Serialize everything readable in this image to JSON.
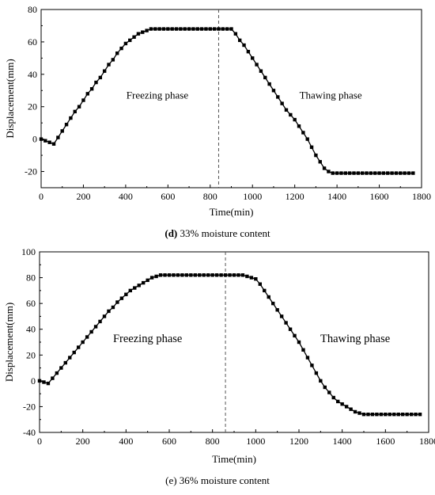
{
  "chart_data": [
    {
      "type": "line",
      "xlabel": "Time(min)",
      "ylabel": "Displacement(mm)",
      "xlim": [
        0,
        1800
      ],
      "ylim": [
        -30,
        80
      ],
      "xticks": [
        0,
        200,
        400,
        600,
        800,
        1000,
        1200,
        1400,
        1600,
        1800
      ],
      "yticks": [
        -20,
        0,
        20,
        40,
        60,
        80
      ],
      "divider_x": 840,
      "annotations": [
        {
          "text": "Freezing phase",
          "x": 550,
          "y": 25
        },
        {
          "text": "Thawing phase",
          "x": 1370,
          "y": 25
        }
      ],
      "caption": {
        "tag": "(d)",
        "text": "33% moisture content"
      },
      "series": [
        {
          "x": [
            0,
            20,
            40,
            60,
            80,
            100,
            120,
            140,
            160,
            180,
            200,
            220,
            240,
            260,
            280,
            300,
            320,
            340,
            360,
            380,
            400,
            420,
            440,
            460,
            480,
            500,
            520,
            540,
            560,
            580,
            600,
            620,
            640,
            660,
            680,
            700,
            720,
            740,
            760,
            780,
            800,
            820,
            840,
            860,
            880,
            900,
            920,
            940,
            960,
            980,
            1000,
            1020,
            1040,
            1060,
            1080,
            1100,
            1120,
            1140,
            1160,
            1180,
            1200,
            1220,
            1240,
            1260,
            1280,
            1300,
            1320,
            1340,
            1360,
            1380,
            1400,
            1420,
            1440,
            1460,
            1480,
            1500,
            1520,
            1540,
            1560,
            1580,
            1600,
            1620,
            1640,
            1660,
            1680,
            1700,
            1720,
            1740,
            1760
          ],
          "y": [
            0,
            -1,
            -2,
            -3,
            1,
            5,
            9,
            13,
            17,
            20,
            24,
            28,
            31,
            35,
            38,
            42,
            46,
            49,
            53,
            56,
            59,
            61,
            63,
            65,
            66,
            67,
            68,
            68,
            68,
            68,
            68,
            68,
            68,
            68,
            68,
            68,
            68,
            68,
            68,
            68,
            68,
            68,
            68,
            68,
            68,
            68,
            65,
            61,
            58,
            54,
            50,
            46,
            42,
            38,
            34,
            30,
            26,
            22,
            18,
            15,
            12,
            8,
            4,
            0,
            -5,
            -10,
            -14,
            -18,
            -20,
            -21,
            -21,
            -21,
            -21,
            -21,
            -21,
            -21,
            -21,
            -21,
            -21,
            -21,
            -21,
            -21,
            -21,
            -21,
            -21,
            -21,
            -21,
            -21,
            -21
          ]
        }
      ]
    },
    {
      "type": "line",
      "xlabel": "Time(min)",
      "ylabel": "Displacement(mm)",
      "xlim": [
        0,
        1800
      ],
      "ylim": [
        -40,
        100
      ],
      "xticks": [
        0,
        200,
        400,
        600,
        800,
        1000,
        1200,
        1400,
        1600,
        1800
      ],
      "yticks": [
        -40,
        -20,
        0,
        20,
        40,
        60,
        80,
        100
      ],
      "divider_x": 860,
      "annotations": [
        {
          "text": "Freezing phase",
          "x": 500,
          "y": 30
        },
        {
          "text": "Thawing phase",
          "x": 1460,
          "y": 30
        }
      ],
      "caption": {
        "tag": "(e)",
        "text": "36% moisture content"
      },
      "series": [
        {
          "x": [
            0,
            20,
            40,
            60,
            80,
            100,
            120,
            140,
            160,
            180,
            200,
            220,
            240,
            260,
            280,
            300,
            320,
            340,
            360,
            380,
            400,
            420,
            440,
            460,
            480,
            500,
            520,
            540,
            560,
            580,
            600,
            620,
            640,
            660,
            680,
            700,
            720,
            740,
            760,
            780,
            800,
            820,
            840,
            860,
            880,
            900,
            920,
            940,
            960,
            980,
            1000,
            1020,
            1040,
            1060,
            1080,
            1100,
            1120,
            1140,
            1160,
            1180,
            1200,
            1220,
            1240,
            1260,
            1280,
            1300,
            1320,
            1340,
            1360,
            1380,
            1400,
            1420,
            1440,
            1460,
            1480,
            1500,
            1520,
            1540,
            1560,
            1580,
            1600,
            1620,
            1640,
            1660,
            1680,
            1700,
            1720,
            1740,
            1760
          ],
          "y": [
            0,
            -1,
            -2,
            2,
            6,
            10,
            14,
            18,
            22,
            26,
            30,
            34,
            38,
            42,
            46,
            50,
            54,
            57,
            61,
            64,
            67,
            70,
            72,
            74,
            76,
            78,
            80,
            81,
            82,
            82,
            82,
            82,
            82,
            82,
            82,
            82,
            82,
            82,
            82,
            82,
            82,
            82,
            82,
            82,
            82,
            82,
            82,
            82,
            81,
            80,
            79,
            75,
            70,
            65,
            60,
            55,
            50,
            45,
            40,
            35,
            30,
            24,
            18,
            12,
            6,
            0,
            -5,
            -9,
            -13,
            -16,
            -18,
            -20,
            -22,
            -24,
            -25,
            -26,
            -26,
            -26,
            -26,
            -26,
            -26,
            -26,
            -26,
            -26,
            -26,
            -26,
            -26,
            -26,
            -26
          ]
        }
      ]
    }
  ]
}
